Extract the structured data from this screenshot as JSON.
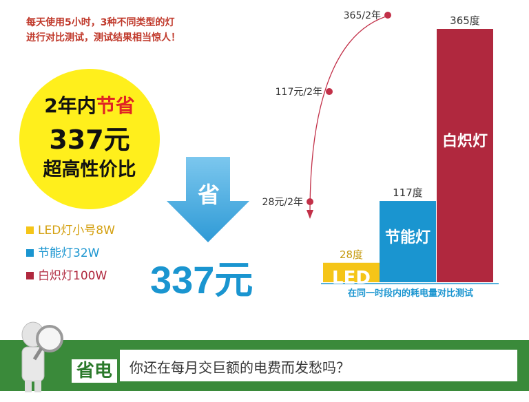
{
  "intro": {
    "line1": "每天使用5小时，3种不同类型的灯",
    "line2": "进行对比测试，测试结果相当惊人！"
  },
  "highlight": {
    "prefix": "2年内",
    "emph": "节省",
    "amount": "337元",
    "tagline": "超高性价比"
  },
  "arrow_label": "省",
  "saved_amount": "337元",
  "legend": [
    {
      "label": "LED灯小号8W",
      "color": "#f5c518"
    },
    {
      "label": "节能灯32W",
      "color": "#1a95d0"
    },
    {
      "label": "白炽灯100W",
      "color": "#b0283e"
    }
  ],
  "chart_data": {
    "type": "bar",
    "caption": "在同一时段内的耗电量对比测试",
    "categories": [
      "LED",
      "节能灯",
      "白炽灯"
    ],
    "values": [
      28,
      117,
      365
    ],
    "value_labels": [
      "28度",
      "117度",
      "365度"
    ],
    "colors": [
      "#f5c518",
      "#1a95d0",
      "#b0283e"
    ],
    "cost_labels": [
      "28元/2年",
      "117元/2年",
      "365/2年"
    ],
    "ylim": [
      0,
      365
    ]
  },
  "banner": {
    "badge": "省电",
    "text": "你还在每月交巨额的电费而发愁吗？"
  }
}
